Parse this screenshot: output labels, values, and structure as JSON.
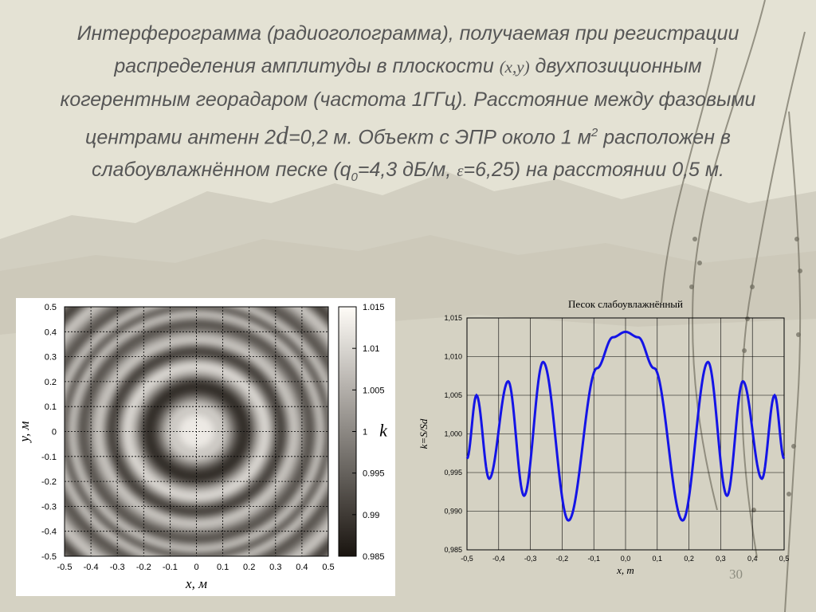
{
  "slide": {
    "title_lines": [
      [
        "Интерферограмма (радиоголограмма), получаемая при регистрации"
      ],
      [
        "распределения амплитуды в плоскости ",
        {
          "var": "(x,y)"
        },
        " двухпозиционным"
      ],
      [
        "когерентным георадаром (частота 1ГГц). Расстояние между фазовыми"
      ],
      [
        "центрами антенн 2",
        {
          "d": "d"
        },
        "=0,2 м. Объект с ЭПР около 1 м",
        {
          "sup": "2"
        },
        " расположен в"
      ],
      [
        "слабоувлажнённом песке (q",
        {
          "sub": "0"
        },
        "=4,3 дБ/м, ",
        {
          "var": "ε"
        },
        "=6,25) на расстоянии 0,5 м."
      ]
    ],
    "page_number": "30"
  },
  "chart_data": [
    {
      "type": "heatmap",
      "xlabel": "x, м",
      "ylabel": "y, м",
      "xlim": [
        -0.5,
        0.5
      ],
      "ylim": [
        -0.5,
        0.5
      ],
      "xticks": [
        "-0.5",
        "-0.4",
        "-0.3",
        "-0.2",
        "-0.1",
        "0",
        "0.1",
        "0.2",
        "0.3",
        "0.4",
        "0.5"
      ],
      "yticks": [
        "0.5",
        "0.4",
        "0.3",
        "0.2",
        "0.1",
        "0",
        "-0.1",
        "-0.2",
        "-0.3",
        "-0.4",
        "-0.5"
      ],
      "grid": true,
      "colorbar": {
        "label": "k",
        "range": [
          0.985,
          1.015
        ],
        "ticks": [
          "1.015",
          "1.01",
          "1.005",
          "1",
          "0.995",
          "0.99",
          "0.985"
        ]
      },
      "pattern": "concentric rings centered at (0,0): peak ≈1.013 at r=0, minima ≈0.989 at r≈0.18, maxima ≈1.009 at r≈0.26, minima ≈0.992 at r≈0.32, maxima ≈1.007 at r≈0.37, minima ≈0.994 at r≈0.43, maxima ≈1.005 at r≈0.47"
    },
    {
      "type": "line",
      "title": "Песок слабоувлажнённый",
      "xlabel": "x, m",
      "ylabel": "k=S/Sd",
      "xlim": [
        -0.5,
        0.5
      ],
      "ylim": [
        0.985,
        1.015
      ],
      "xticks": [
        "-0,5",
        "-0,4",
        "-0,3",
        "-0,2",
        "-0,1",
        "0,0",
        "0,1",
        "0,2",
        "0,3",
        "0,4",
        "0,5"
      ],
      "yticks": [
        "1,015",
        "1,010",
        "1,005",
        "1,000",
        "0,995",
        "0,990",
        "0,985"
      ],
      "grid": true,
      "series": [
        {
          "color": "#1414e6",
          "x": [
            -0.5,
            -0.47,
            -0.43,
            -0.37,
            -0.32,
            -0.26,
            -0.18,
            -0.09,
            -0.04,
            0.0,
            0.04,
            0.09,
            0.18,
            0.26,
            0.32,
            0.37,
            0.43,
            0.47,
            0.5
          ],
          "y": [
            0.9968,
            1.005,
            0.9942,
            1.0068,
            0.992,
            1.0093,
            0.9888,
            1.0085,
            1.0125,
            1.0132,
            1.0125,
            1.0085,
            0.9888,
            1.0093,
            0.992,
            1.0068,
            0.9942,
            1.005,
            0.9968
          ]
        }
      ]
    }
  ]
}
